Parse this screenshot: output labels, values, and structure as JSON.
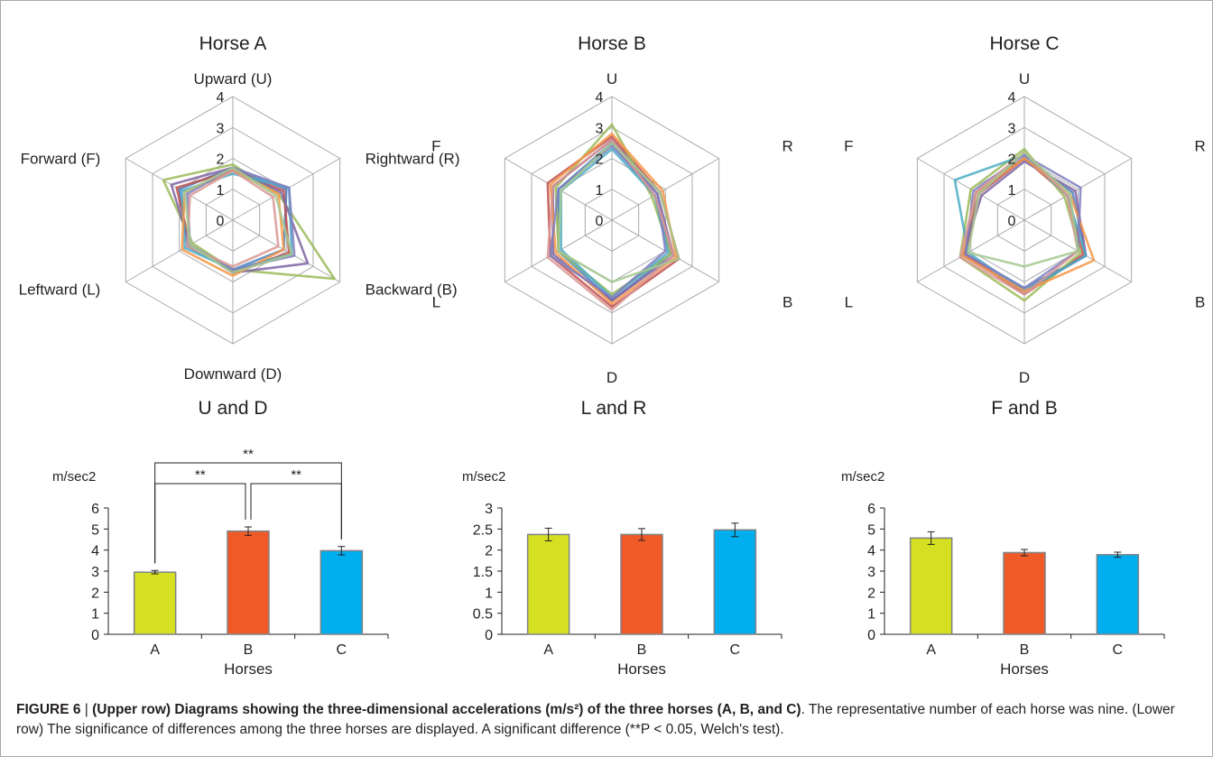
{
  "radar_labels": {
    "horse_a": [
      "Upward (U)",
      "Rightward (R)",
      "Backward (B)",
      "Downward (D)",
      "Leftward (L)",
      "Forward (F)"
    ],
    "short": [
      "U",
      "R",
      "B",
      "D",
      "L",
      "F"
    ]
  },
  "series_colors": [
    "#4f81bd",
    "#c0504d",
    "#9bbb59",
    "#8064a2",
    "#4bacc6",
    "#f79646",
    "#7f7fbf",
    "#d99694",
    "#a5c88f"
  ],
  "bar_colors": [
    "#d4e021",
    "#f05a28",
    "#00aeef"
  ],
  "chart_data": [
    {
      "type": "radar",
      "title": "Horse A",
      "axes": [
        "U",
        "R",
        "B",
        "D",
        "L",
        "F"
      ],
      "rlim": [
        0,
        4
      ],
      "ticks": [
        "0",
        "1",
        "2",
        "3",
        "4"
      ],
      "series": [
        {
          "values": [
            1.7,
            2.0,
            1.9,
            1.6,
            1.7,
            2.0
          ]
        },
        {
          "values": [
            1.6,
            1.9,
            2.1,
            1.7,
            1.6,
            2.1
          ]
        },
        {
          "values": [
            1.8,
            1.7,
            3.8,
            1.6,
            1.5,
            2.6
          ]
        },
        {
          "values": [
            1.7,
            1.8,
            2.8,
            1.7,
            1.6,
            2.3
          ]
        },
        {
          "values": [
            1.5,
            2.1,
            2.2,
            1.6,
            1.8,
            1.9
          ]
        },
        {
          "values": [
            1.6,
            1.7,
            1.9,
            1.8,
            1.9,
            1.8
          ]
        },
        {
          "values": [
            1.7,
            2.1,
            2.3,
            1.6,
            1.6,
            1.7
          ]
        },
        {
          "values": [
            1.6,
            1.5,
            1.7,
            1.5,
            1.7,
            1.6
          ]
        },
        {
          "values": [
            1.7,
            1.6,
            2.2,
            1.7,
            1.6,
            1.8
          ]
        }
      ]
    },
    {
      "type": "radar",
      "title": "Horse B",
      "axes": [
        "U",
        "R",
        "B",
        "D",
        "L",
        "F"
      ],
      "rlim": [
        0,
        4
      ],
      "ticks": [
        "0",
        "1",
        "2",
        "3",
        "4"
      ],
      "series": [
        {
          "values": [
            2.5,
            1.6,
            2.2,
            2.6,
            2.0,
            2.0
          ]
        },
        {
          "values": [
            2.7,
            1.8,
            2.5,
            2.8,
            2.3,
            2.4
          ]
        },
        {
          "values": [
            3.1,
            1.5,
            2.2,
            2.4,
            2.0,
            2.1
          ]
        },
        {
          "values": [
            2.6,
            1.7,
            2.3,
            2.6,
            2.2,
            2.2
          ]
        },
        {
          "values": [
            2.3,
            1.6,
            2.1,
            2.5,
            1.9,
            1.9
          ]
        },
        {
          "values": [
            2.8,
            1.9,
            2.4,
            2.7,
            2.1,
            2.3
          ]
        },
        {
          "values": [
            2.4,
            1.7,
            2.0,
            2.5,
            2.3,
            2.0
          ]
        },
        {
          "values": [
            2.6,
            1.6,
            2.3,
            2.9,
            2.4,
            2.2
          ]
        },
        {
          "values": [
            2.5,
            1.8,
            2.5,
            2.0,
            2.0,
            1.9
          ]
        }
      ]
    },
    {
      "type": "radar",
      "title": "Horse C",
      "axes": [
        "U",
        "R",
        "B",
        "D",
        "L",
        "F"
      ],
      "rlim": [
        0,
        4
      ],
      "ticks": [
        "0",
        "1",
        "2",
        "3",
        "4"
      ],
      "series": [
        {
          "values": [
            2.0,
            1.8,
            2.3,
            2.2,
            2.2,
            1.8
          ]
        },
        {
          "values": [
            2.0,
            1.6,
            2.2,
            2.4,
            2.2,
            1.7
          ]
        },
        {
          "values": [
            2.3,
            1.5,
            2.1,
            2.6,
            2.4,
            2.0
          ]
        },
        {
          "values": [
            1.9,
            1.9,
            2.3,
            2.3,
            2.3,
            1.6
          ]
        },
        {
          "values": [
            2.1,
            1.6,
            2.3,
            2.3,
            2.1,
            2.6
          ]
        },
        {
          "values": [
            2.0,
            1.7,
            2.6,
            2.3,
            2.3,
            1.8
          ]
        },
        {
          "values": [
            2.1,
            2.1,
            2.0,
            2.2,
            2.2,
            1.9
          ]
        },
        {
          "values": [
            2.2,
            1.6,
            2.0,
            2.4,
            2.4,
            1.8
          ]
        },
        {
          "values": [
            2.2,
            1.7,
            2.0,
            1.5,
            2.1,
            1.7
          ]
        }
      ]
    },
    {
      "type": "bar",
      "title": "U and D",
      "ylabel": "m/sec2",
      "xlabel": "Horses",
      "categories": [
        "A",
        "B",
        "C"
      ],
      "values": [
        2.95,
        4.9,
        3.97
      ],
      "errors": [
        0.08,
        0.2,
        0.2
      ],
      "ylim": [
        0,
        6
      ],
      "yticks": [
        "0",
        "1",
        "2",
        "3",
        "4",
        "5",
        "6"
      ],
      "significance": [
        {
          "from": 0,
          "to": 1,
          "label": "**"
        },
        {
          "from": 1,
          "to": 2,
          "label": "**"
        },
        {
          "from": 0,
          "to": 2,
          "label": "**"
        }
      ]
    },
    {
      "type": "bar",
      "title": "L and R",
      "ylabel": "m/sec2",
      "xlabel": "Horses",
      "categories": [
        "A",
        "B",
        "C"
      ],
      "values": [
        2.37,
        2.37,
        2.48
      ],
      "errors": [
        0.15,
        0.14,
        0.16
      ],
      "ylim": [
        0,
        3
      ],
      "yticks": [
        "0",
        "0.5",
        "1",
        "1.5",
        "2",
        "2.5",
        "3"
      ]
    },
    {
      "type": "bar",
      "title": "F and B",
      "ylabel": "m/sec2",
      "xlabel": "Horses",
      "categories": [
        "A",
        "B",
        "C"
      ],
      "values": [
        4.57,
        3.88,
        3.78
      ],
      "errors": [
        0.3,
        0.15,
        0.12
      ],
      "ylim": [
        0,
        6
      ],
      "yticks": [
        "0",
        "1",
        "2",
        "3",
        "4",
        "5",
        "6"
      ]
    }
  ],
  "caption": {
    "label": "FIGURE 6",
    "separator": " | ",
    "bold": "(Upper row) Diagrams showing the three-dimensional accelerations (m/s²) of the three horses (A, B, and C)",
    "rest": ". The representative number of each horse was nine. (Lower row) The significance of differences among the three horses are displayed. A significant difference (**P < 0.05, Welch's test)."
  }
}
